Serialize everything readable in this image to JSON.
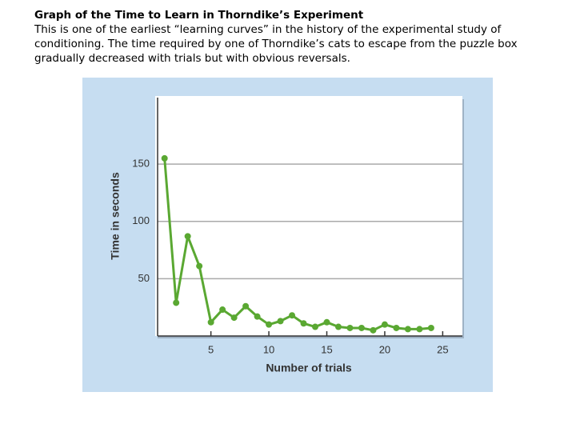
{
  "header": {
    "title": "Graph of the Time to Learn in Thorndike’s Experiment",
    "description": "This is one of the earliest “learning curves” in the history of the experimental study of conditioning. The time required by one of Thorndike’s cats to escape from the puzzle box gradually decreased with trials but with obvious reversals."
  },
  "chart_data": {
    "type": "line",
    "xlabel": "Number of trials",
    "ylabel": "Time in seconds",
    "x": [
      1,
      2,
      3,
      4,
      5,
      6,
      7,
      8,
      9,
      10,
      11,
      12,
      13,
      14,
      15,
      16,
      17,
      18,
      19,
      20,
      21,
      22,
      23,
      24
    ],
    "values": [
      155,
      29,
      87,
      61,
      12,
      23,
      16,
      26,
      17,
      10,
      13,
      18,
      11,
      8,
      12,
      8,
      7,
      7,
      5,
      10,
      7,
      6,
      6,
      7
    ],
    "color": "#5aa832",
    "xlim": [
      0.4,
      26.7
    ],
    "ylim": [
      0,
      208
    ],
    "xticks": [
      5,
      10,
      15,
      20,
      25
    ],
    "yticks": [
      50,
      100,
      150
    ],
    "grid": true
  }
}
